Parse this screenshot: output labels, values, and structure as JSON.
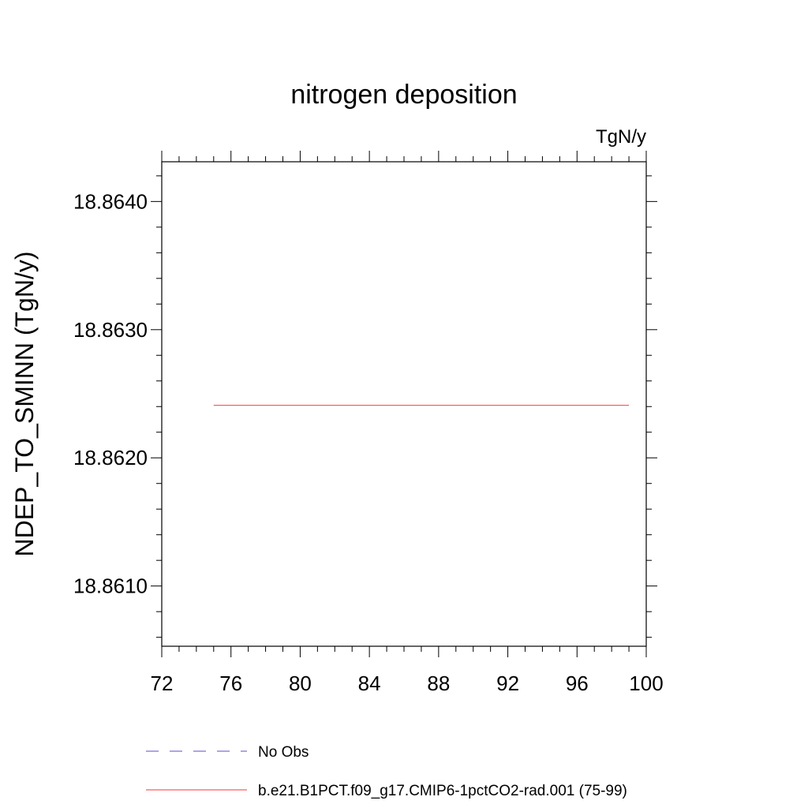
{
  "chart_data": {
    "type": "line",
    "title": "nitrogen deposition",
    "units_label": "TgN/y",
    "xlabel": "",
    "ylabel": "NDEP_TO_SMINN  (TgN/y)",
    "xlim": [
      72,
      100
    ],
    "ylim": [
      18.86053,
      18.86431
    ],
    "x_ticks": [
      72,
      76,
      80,
      84,
      88,
      92,
      96,
      100
    ],
    "x_tick_labels": [
      "72",
      "76",
      "80",
      "84",
      "88",
      "92",
      "96",
      "100"
    ],
    "y_ticks": [
      18.861,
      18.862,
      18.863,
      18.864
    ],
    "y_tick_labels": [
      "18.8610",
      "18.8620",
      "18.8630",
      "18.8640"
    ],
    "grid": false,
    "legend_position": "bottom-left",
    "series": [
      {
        "name": "No Obs",
        "color": "#7b6fd6",
        "dash": "dashed",
        "x": [],
        "y": []
      },
      {
        "name": "b.e21.B1PCT.f09_g17.CMIP6-1pctCO2-rad.001 (75-99)",
        "color": "#ff5a5a",
        "dash": "solid",
        "x": [
          75,
          99
        ],
        "y": [
          18.86241,
          18.86241
        ]
      }
    ]
  }
}
